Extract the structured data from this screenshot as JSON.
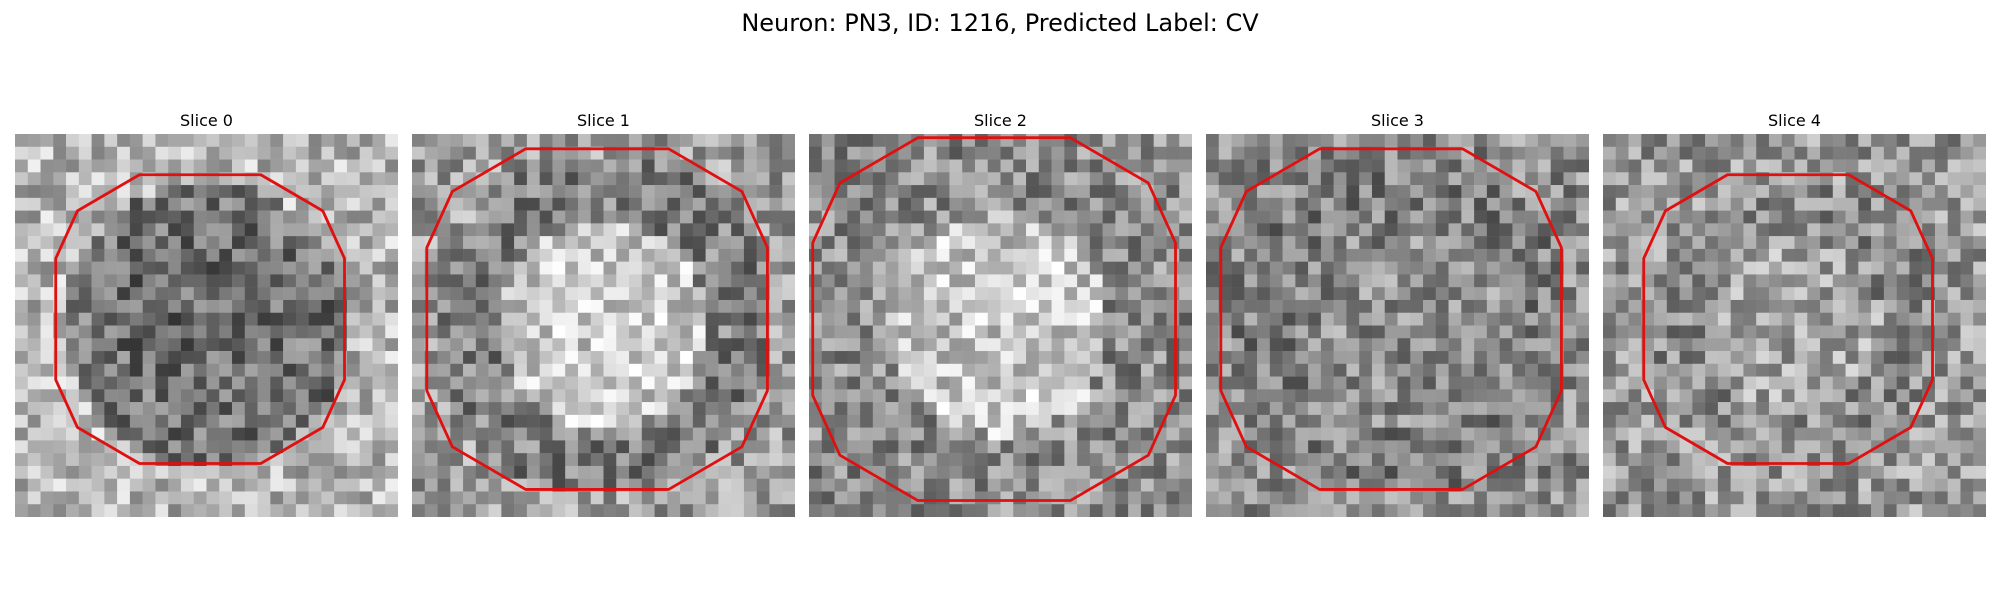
{
  "title": "Neuron: PN3, ID: 1216, Predicted Label: CV",
  "colors": {
    "contour": "#e01010",
    "background": "#ffffff",
    "image_colormap": "grayscale"
  },
  "slices": [
    {
      "label": "Slice 0",
      "seed": 11,
      "center_brightness": 0.42,
      "ring_brightness": 0.45,
      "outside_brightness": 0.72,
      "contour_radius_fraction": 0.78,
      "contour_shape": "octagon"
    },
    {
      "label": "Slice 1",
      "seed": 23,
      "center_brightness": 0.8,
      "ring_brightness": 0.5,
      "outside_brightness": 0.62,
      "contour_radius_fraction": 0.92,
      "contour_shape": "octagon-open"
    },
    {
      "label": "Slice 2",
      "seed": 37,
      "center_brightness": 0.78,
      "ring_brightness": 0.55,
      "outside_brightness": 0.55,
      "contour_radius_fraction": 0.98,
      "contour_shape": "octagon-open"
    },
    {
      "label": "Slice 3",
      "seed": 51,
      "center_brightness": 0.55,
      "ring_brightness": 0.5,
      "outside_brightness": 0.55,
      "contour_radius_fraction": 0.92,
      "contour_shape": "octagon-open"
    },
    {
      "label": "Slice 4",
      "seed": 67,
      "center_brightness": 0.65,
      "ring_brightness": 0.55,
      "outside_brightness": 0.6,
      "contour_radius_fraction": 0.78,
      "contour_shape": "octagon"
    }
  ]
}
